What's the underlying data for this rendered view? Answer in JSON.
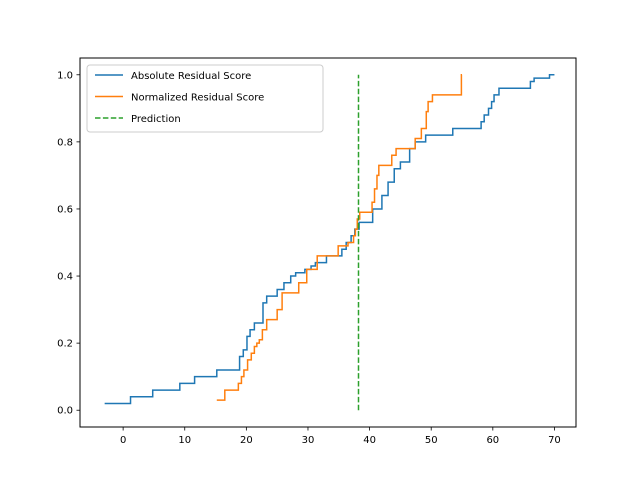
{
  "chart_data": {
    "type": "line",
    "title": "",
    "xlabel": "",
    "ylabel": "",
    "xlim": [
      -7.0,
      73.5
    ],
    "ylim": [
      -0.05,
      1.05
    ],
    "xticks": [
      0,
      10,
      20,
      30,
      40,
      50,
      60,
      70
    ],
    "yticks": [
      0.0,
      0.2,
      0.4,
      0.6,
      0.8,
      1.0
    ],
    "xtick_labels": [
      "0",
      "10",
      "20",
      "30",
      "40",
      "50",
      "60",
      "70"
    ],
    "ytick_labels": [
      "0.0",
      "0.2",
      "0.4",
      "0.6",
      "0.8",
      "1.0"
    ],
    "grid": false,
    "legend_position": "top-left",
    "series": [
      {
        "name": "Absolute Residual Score",
        "color": "#1f77b4",
        "style": "step",
        "x": [
          -3.0,
          1.2,
          4.8,
          9.2,
          11.6,
          15.2,
          18.9,
          19.5,
          20.1,
          20.6,
          21.3,
          22.7,
          23.3,
          25.0,
          26.1,
          27.2,
          28.0,
          29.5,
          30.5,
          31.2,
          33.0,
          35.5,
          36.2,
          37.0,
          37.6,
          38.3,
          40.5,
          42.0,
          43.0,
          44.0,
          45.0,
          46.5,
          47.4,
          49.1,
          53.5,
          58.1,
          58.6,
          59.3,
          59.8,
          60.2,
          61.0,
          66.1,
          66.7,
          69.2,
          70.0
        ],
        "y": [
          0.02,
          0.04,
          0.06,
          0.08,
          0.1,
          0.12,
          0.16,
          0.18,
          0.22,
          0.24,
          0.26,
          0.32,
          0.34,
          0.36,
          0.38,
          0.4,
          0.41,
          0.42,
          0.43,
          0.44,
          0.46,
          0.48,
          0.5,
          0.52,
          0.54,
          0.56,
          0.6,
          0.64,
          0.68,
          0.72,
          0.74,
          0.78,
          0.8,
          0.82,
          0.84,
          0.86,
          0.88,
          0.9,
          0.92,
          0.94,
          0.96,
          0.98,
          0.99,
          1.0,
          1.0
        ]
      },
      {
        "name": "Normalized Residual Score",
        "color": "#ff7f0e",
        "style": "step",
        "x": [
          15.2,
          16.5,
          18.7,
          19.2,
          19.6,
          20.2,
          20.8,
          21.3,
          21.7,
          22.1,
          22.6,
          23.3,
          25.0,
          25.8,
          28.5,
          29.8,
          31.5,
          34.9,
          36.5,
          37.4,
          37.7,
          38.0,
          38.4,
          40.4,
          40.8,
          41.2,
          41.5,
          43.6,
          44.3,
          47.4,
          48.4,
          49.2,
          49.5,
          50.2,
          54.9,
          55.0
        ],
        "y": [
          0.03,
          0.06,
          0.08,
          0.1,
          0.12,
          0.15,
          0.17,
          0.19,
          0.2,
          0.21,
          0.24,
          0.27,
          0.3,
          0.35,
          0.38,
          0.42,
          0.46,
          0.49,
          0.5,
          0.52,
          0.54,
          0.57,
          0.59,
          0.62,
          0.66,
          0.7,
          0.73,
          0.76,
          0.78,
          0.81,
          0.84,
          0.89,
          0.92,
          0.94,
          1.0,
          1.0
        ]
      },
      {
        "name": "Prediction",
        "color": "#2ca02c",
        "style": "dashed",
        "x": [
          38.2,
          38.2
        ],
        "y": [
          0.0,
          1.0
        ]
      }
    ]
  }
}
